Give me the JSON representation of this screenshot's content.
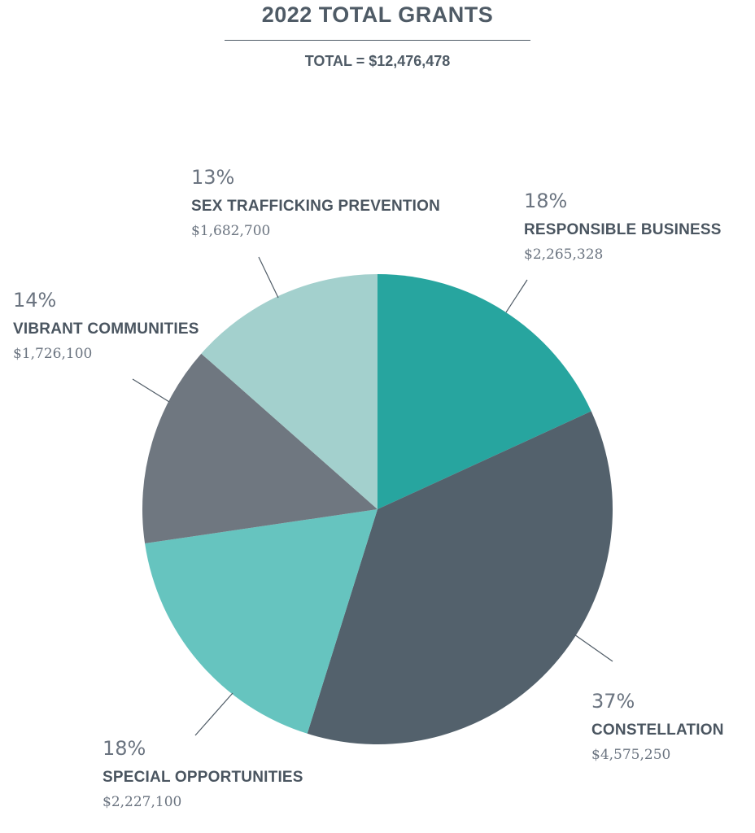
{
  "header": {
    "title": "2022 TOTAL GRANTS",
    "subtitle": "TOTAL = $12,476,478"
  },
  "chart_data": {
    "type": "pie",
    "title": "2022 TOTAL GRANTS",
    "subtitle": "TOTAL = $12,476,478",
    "total": 12476478,
    "slices": [
      {
        "label": "RESPONSIBLE BUSINESS",
        "value": 2265328,
        "percent_label": "18%",
        "amount_label": "$2,265,328",
        "color": "#27a59f"
      },
      {
        "label": "CONSTELLATION",
        "value": 4575250,
        "percent_label": "37%",
        "amount_label": "$4,575,250",
        "color": "#53616c"
      },
      {
        "label": "SPECIAL OPPORTUNITIES",
        "value": 2227100,
        "percent_label": "18%",
        "amount_label": "$2,227,100",
        "color": "#66c4bf"
      },
      {
        "label": "VIBRANT COMMUNITIES",
        "value": 1726100,
        "percent_label": "14%",
        "amount_label": "$1,726,100",
        "color": "#6f7780"
      },
      {
        "label": "SEX TRAFFICKING PREVENTION",
        "value": 1682700,
        "percent_label": "13%",
        "amount_label": "$1,682,700",
        "color": "#a3d0cd"
      }
    ]
  }
}
